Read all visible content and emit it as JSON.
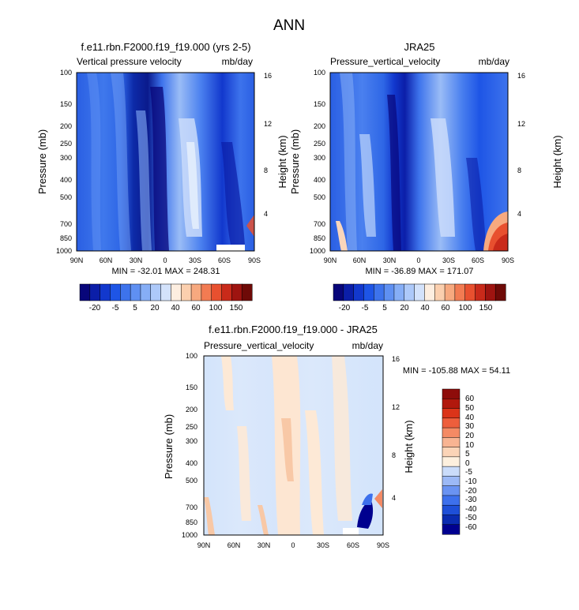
{
  "figure": {
    "title": "ANN"
  },
  "colors": {
    "abs_scale": [
      "#08067a",
      "#0b1ea8",
      "#1238cd",
      "#1e55e6",
      "#3d73ec",
      "#5f90f2",
      "#86aef6",
      "#adc9f9",
      "#d3e2fb",
      "#fdeee0",
      "#fbcfae",
      "#f7a97f",
      "#f27b52",
      "#e8502f",
      "#c92a1a",
      "#9e1410",
      "#6e0a07"
    ],
    "diff_scale": [
      "#00008f",
      "#0a2bb0",
      "#1e4fd8",
      "#3d70ec",
      "#6a93f2",
      "#9cb9f6",
      "#cadcfa",
      "#fdf0de",
      "#fbd4b7",
      "#f8b492",
      "#f48a64",
      "#ee5e3c",
      "#db3419",
      "#b1180d",
      "#8e0c0a"
    ]
  },
  "chart_data": [
    {
      "type": "heatmap",
      "id": "panel-model",
      "title": "f.e11.rbn.F2000.f19_f19.000 (yrs 2-5)",
      "left_label": "Vertical pressure velocity",
      "units": "mb/day",
      "xlabel": "",
      "ylabel": "Pressure (mb)",
      "y2label": "Height (km)",
      "x_ticks": [
        "90N",
        "60N",
        "30N",
        "0",
        "30S",
        "60S",
        "90S"
      ],
      "y_ticks": [
        "100",
        "150",
        "200",
        "250",
        "300",
        "400",
        "500",
        "700",
        "850",
        "1000"
      ],
      "y2_ticks": [
        "16",
        "12",
        "8",
        "4"
      ],
      "min_max_text": "MIN = -32.01  MAX = 248.31",
      "min": -32.01,
      "max": 248.31,
      "colorbar_labels": [
        "-20",
        "-5",
        "5",
        "20",
        "40",
        "60",
        "100",
        "150"
      ],
      "colorbar_label_slots": [
        1,
        3,
        5,
        7,
        9,
        11,
        13,
        15
      ]
    },
    {
      "type": "heatmap",
      "id": "panel-obs",
      "title": "JRA25",
      "left_label": "Pressure_vertical_velocity",
      "units": "mb/day",
      "xlabel": "",
      "ylabel": "Pressure (mb)",
      "y2label": "Height (km)",
      "x_ticks": [
        "90N",
        "60N",
        "30N",
        "0",
        "30S",
        "60S",
        "90S"
      ],
      "y_ticks": [
        "100",
        "150",
        "200",
        "250",
        "300",
        "400",
        "500",
        "700",
        "850",
        "1000"
      ],
      "y2_ticks": [
        "16",
        "12",
        "8",
        "4"
      ],
      "min_max_text": "MIN = -36.89  MAX = 171.07",
      "min": -36.89,
      "max": 171.07,
      "colorbar_labels": [
        "-20",
        "-5",
        "5",
        "20",
        "40",
        "60",
        "100",
        "150"
      ],
      "colorbar_label_slots": [
        1,
        3,
        5,
        7,
        9,
        11,
        13,
        15
      ]
    },
    {
      "type": "heatmap",
      "id": "panel-diff",
      "title": "f.e11.rbn.F2000.f19_f19.000 - JRA25",
      "left_label": "Pressure_vertical_velocity",
      "units": "mb/day",
      "xlabel": "",
      "ylabel": "Pressure (mb)",
      "y2label": "Height (km)",
      "x_ticks": [
        "90N",
        "60N",
        "30N",
        "0",
        "30S",
        "60S",
        "90S"
      ],
      "y_ticks": [
        "100",
        "150",
        "200",
        "250",
        "300",
        "400",
        "500",
        "700",
        "850",
        "1000"
      ],
      "y2_ticks": [
        "16",
        "12",
        "8",
        "4"
      ],
      "min_max_text": "MIN = -105.88  MAX = 54.11",
      "min": -105.88,
      "max": 54.11,
      "colorbar_labels": [
        "60",
        "50",
        "40",
        "30",
        "20",
        "10",
        "5",
        "0",
        "-5",
        "-10",
        "-20",
        "-30",
        "-40",
        "-50",
        "-60"
      ]
    }
  ]
}
